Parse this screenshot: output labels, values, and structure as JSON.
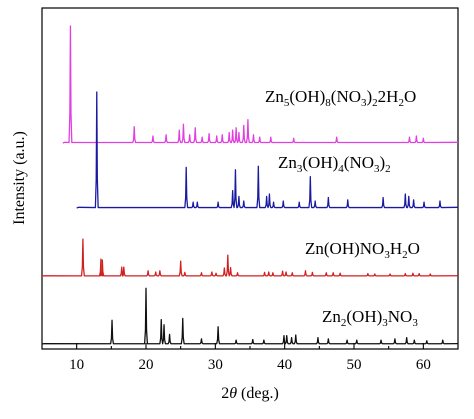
{
  "chart_data": {
    "type": "line",
    "xlabel_theta": "θ",
    "xlabel_prefix": "2",
    "xlabel_suffix": " (deg.)",
    "ylabel": "Intensity (a.u.)",
    "xlim": [
      5,
      65
    ],
    "xticks": [
      10,
      20,
      30,
      40,
      50,
      60
    ],
    "grid": false,
    "legend": "inline labels",
    "series": [
      {
        "color": "#e040e0",
        "label_parts": [
          [
            "t",
            "Zn"
          ],
          [
            "s",
            "5"
          ],
          [
            "t",
            "(OH)"
          ],
          [
            "s",
            "8"
          ],
          [
            "t",
            "(NO"
          ],
          [
            "s",
            "3"
          ],
          [
            "t",
            ")"
          ],
          [
            "s",
            "2"
          ],
          [
            "t",
            "2H"
          ],
          [
            "s",
            "2"
          ],
          [
            "t",
            "O"
          ]
        ],
        "x_start": 8.0,
        "peaks": [
          [
            9.1,
            1.0
          ],
          [
            18.3,
            0.14
          ],
          [
            21.0,
            0.06
          ],
          [
            22.9,
            0.07
          ],
          [
            24.8,
            0.11
          ],
          [
            25.4,
            0.16
          ],
          [
            26.3,
            0.07
          ],
          [
            27.1,
            0.13
          ],
          [
            28.1,
            0.05
          ],
          [
            29.1,
            0.08
          ],
          [
            30.2,
            0.06
          ],
          [
            31.0,
            0.07
          ],
          [
            32.0,
            0.09
          ],
          [
            32.5,
            0.11
          ],
          [
            33.0,
            0.13
          ],
          [
            33.4,
            0.09
          ],
          [
            34.1,
            0.15
          ],
          [
            34.7,
            0.2
          ],
          [
            35.5,
            0.07
          ],
          [
            36.4,
            0.05
          ],
          [
            38.0,
            0.05
          ],
          [
            41.3,
            0.04
          ],
          [
            47.5,
            0.05
          ],
          [
            58.0,
            0.05
          ],
          [
            59.0,
            0.06
          ],
          [
            60.0,
            0.04
          ]
        ]
      },
      {
        "color": "#1a1aa0",
        "label_parts": [
          [
            "t",
            "Zn"
          ],
          [
            "s",
            "3"
          ],
          [
            "t",
            "(OH)"
          ],
          [
            "s",
            "4"
          ],
          [
            "t",
            "(NO"
          ],
          [
            "s",
            "3"
          ],
          [
            "t",
            ")"
          ],
          [
            "s",
            "2"
          ]
        ],
        "x_start": 10.0,
        "peaks": [
          [
            12.9,
            1.0
          ],
          [
            25.8,
            0.35
          ],
          [
            26.8,
            0.05
          ],
          [
            27.4,
            0.05
          ],
          [
            30.4,
            0.05
          ],
          [
            32.5,
            0.15
          ],
          [
            32.9,
            0.33
          ],
          [
            33.4,
            0.1
          ],
          [
            34.1,
            0.06
          ],
          [
            36.2,
            0.36
          ],
          [
            37.4,
            0.1
          ],
          [
            37.8,
            0.12
          ],
          [
            38.4,
            0.05
          ],
          [
            39.8,
            0.06
          ],
          [
            42.1,
            0.05
          ],
          [
            43.7,
            0.27
          ],
          [
            44.4,
            0.06
          ],
          [
            46.3,
            0.09
          ],
          [
            49.1,
            0.07
          ],
          [
            54.2,
            0.09
          ],
          [
            57.4,
            0.12
          ],
          [
            57.9,
            0.1
          ],
          [
            58.6,
            0.07
          ],
          [
            60.1,
            0.05
          ],
          [
            62.4,
            0.06
          ]
        ]
      },
      {
        "color": "#d02020",
        "label_parts": [
          [
            "t",
            "Zn(OH)NO"
          ],
          [
            "s",
            "3"
          ],
          [
            "t",
            "H"
          ],
          [
            "s",
            "2"
          ],
          [
            "t",
            "O"
          ]
        ],
        "x_start": 5.0,
        "peaks": [
          [
            10.9,
            0.92
          ],
          [
            13.5,
            0.42
          ],
          [
            13.7,
            0.4
          ],
          [
            16.5,
            0.22
          ],
          [
            16.8,
            0.22
          ],
          [
            20.3,
            0.13
          ],
          [
            21.4,
            0.1
          ],
          [
            22.0,
            0.13
          ],
          [
            25.0,
            0.37
          ],
          [
            25.6,
            0.09
          ],
          [
            28.0,
            0.08
          ],
          [
            29.5,
            0.1
          ],
          [
            30.1,
            0.07
          ],
          [
            31.3,
            0.2
          ],
          [
            31.8,
            0.52
          ],
          [
            32.2,
            0.21
          ],
          [
            33.2,
            0.08
          ],
          [
            37.1,
            0.09
          ],
          [
            37.7,
            0.1
          ],
          [
            38.3,
            0.08
          ],
          [
            39.7,
            0.12
          ],
          [
            40.2,
            0.1
          ],
          [
            41.1,
            0.08
          ],
          [
            43.0,
            0.13
          ],
          [
            44.0,
            0.09
          ],
          [
            46.0,
            0.08
          ],
          [
            47.0,
            0.08
          ],
          [
            48.0,
            0.07
          ],
          [
            52.0,
            0.06
          ],
          [
            53.0,
            0.05
          ],
          [
            55.2,
            0.05
          ],
          [
            57.4,
            0.06
          ],
          [
            58.5,
            0.07
          ],
          [
            59.4,
            0.06
          ],
          [
            61.0,
            0.05
          ]
        ]
      },
      {
        "color": "#101010",
        "label_parts": [
          [
            "t",
            "Zn"
          ],
          [
            "s",
            "2"
          ],
          [
            "t",
            "(OH)"
          ],
          [
            "s",
            "3"
          ],
          [
            "t",
            "NO"
          ],
          [
            "s",
            "3"
          ]
        ],
        "x_start": 5.0,
        "peaks": [
          [
            15.1,
            0.37
          ],
          [
            20.0,
            0.87
          ],
          [
            22.2,
            0.38
          ],
          [
            22.6,
            0.3
          ],
          [
            23.4,
            0.15
          ],
          [
            25.3,
            0.4
          ],
          [
            28.0,
            0.08
          ],
          [
            30.4,
            0.27
          ],
          [
            33.0,
            0.06
          ],
          [
            35.4,
            0.07
          ],
          [
            37.0,
            0.06
          ],
          [
            39.9,
            0.13
          ],
          [
            40.3,
            0.13
          ],
          [
            41.0,
            0.1
          ],
          [
            41.6,
            0.14
          ],
          [
            44.8,
            0.1
          ],
          [
            46.3,
            0.08
          ],
          [
            49.0,
            0.06
          ],
          [
            50.4,
            0.06
          ],
          [
            53.9,
            0.06
          ],
          [
            55.9,
            0.08
          ],
          [
            57.6,
            0.1
          ],
          [
            58.7,
            0.06
          ],
          [
            60.5,
            0.05
          ],
          [
            62.8,
            0.06
          ]
        ]
      }
    ]
  }
}
